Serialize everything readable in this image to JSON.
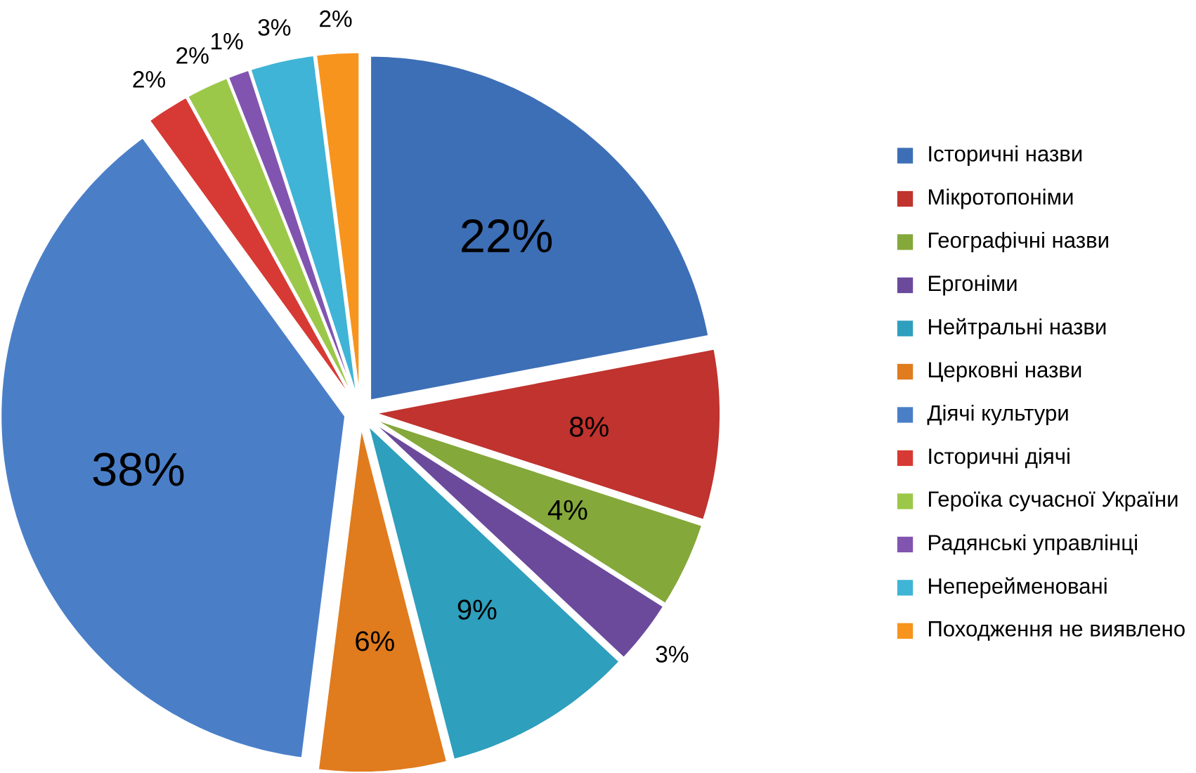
{
  "chart_data": {
    "type": "pie",
    "categories": [
      "Історичні назви",
      "Мікротопоніми",
      "Географічні назви",
      "Ергоніми",
      "Нейтральні назви",
      "Церковні назви",
      "Діячі культури",
      "Історичні діячі",
      "Героїка сучасної України",
      "Радянські управлінці",
      "Неперейменовані",
      "Походження не виявлено"
    ],
    "values": [
      22,
      8,
      4,
      3,
      9,
      6,
      38,
      2,
      2,
      1,
      3,
      2
    ],
    "value_labels": [
      "22%",
      "8%",
      "4%",
      "3%",
      "9%",
      "6%",
      "38%",
      "2%",
      "2%",
      "1%",
      "3%",
      "2%"
    ],
    "colors": [
      "#3d6fb6",
      "#c0332e",
      "#84a83a",
      "#6b4a9c",
      "#2e9fbd",
      "#e07b1e",
      "#4a7fc8",
      "#d73a34",
      "#9cc84a",
      "#8154b0",
      "#3fb4d6",
      "#f7941d"
    ],
    "legend": "right"
  }
}
